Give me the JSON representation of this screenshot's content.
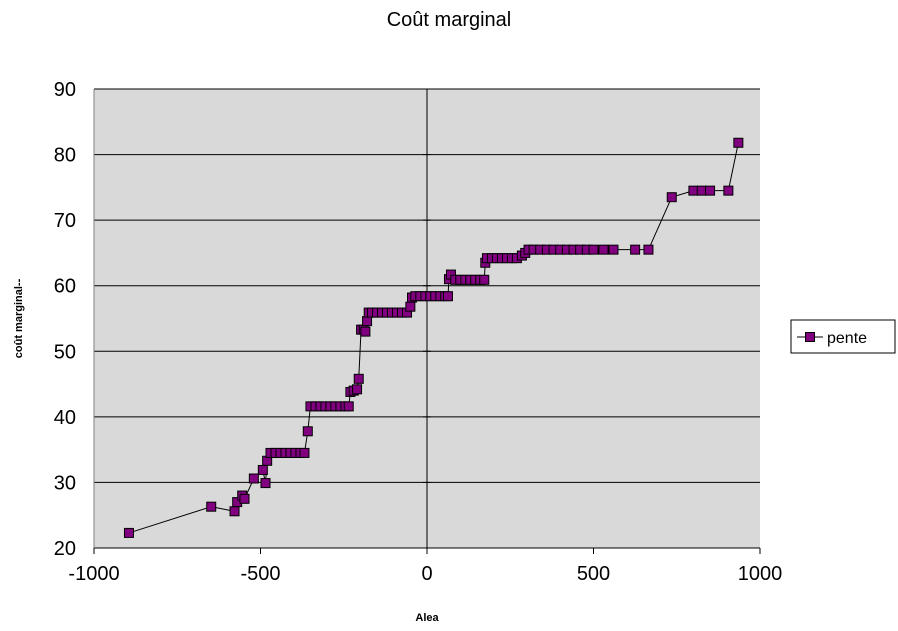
{
  "chart_data": {
    "type": "scatter",
    "title": "Coût marginal",
    "xlabel": "Alea",
    "ylabel": "coût marginal--",
    "xlim": [
      -1000,
      1000
    ],
    "ylim": [
      20,
      90
    ],
    "xticks": [
      -1000,
      -500,
      0,
      500,
      1000
    ],
    "yticks": [
      20,
      30,
      40,
      50,
      60,
      70,
      80,
      90
    ],
    "xtick_labels": [
      "-1000",
      "-500",
      "0",
      "500",
      "1000"
    ],
    "ytick_labels": [
      "20",
      "30",
      "40",
      "50",
      "60",
      "70",
      "80",
      "90"
    ],
    "grid": true,
    "legend": "right",
    "plot_background": "#d9d9d9",
    "series": [
      {
        "name": "pente",
        "marker": "square",
        "color": "#800080",
        "line_color": "#000000",
        "points": [
          [
            -895,
            22.3
          ],
          [
            -648,
            26.3
          ],
          [
            -578,
            25.6
          ],
          [
            -570,
            27.0
          ],
          [
            -555,
            28.0
          ],
          [
            -548,
            27.5
          ],
          [
            -520,
            30.6
          ],
          [
            -493,
            31.9
          ],
          [
            -485,
            29.9
          ],
          [
            -480,
            33.3
          ],
          [
            -470,
            34.5
          ],
          [
            -455,
            34.5
          ],
          [
            -440,
            34.5
          ],
          [
            -425,
            34.5
          ],
          [
            -410,
            34.5
          ],
          [
            -395,
            34.5
          ],
          [
            -380,
            34.5
          ],
          [
            -368,
            34.5
          ],
          [
            -358,
            37.8
          ],
          [
            -350,
            41.6
          ],
          [
            -335,
            41.6
          ],
          [
            -320,
            41.6
          ],
          [
            -305,
            41.6
          ],
          [
            -290,
            41.6
          ],
          [
            -275,
            41.6
          ],
          [
            -260,
            41.6
          ],
          [
            -245,
            41.6
          ],
          [
            -235,
            41.6
          ],
          [
            -230,
            43.8
          ],
          [
            -220,
            44.0
          ],
          [
            -210,
            44.2
          ],
          [
            -205,
            45.8
          ],
          [
            -198,
            53.3
          ],
          [
            -190,
            53.3
          ],
          [
            -185,
            53.0
          ],
          [
            -180,
            54.6
          ],
          [
            -175,
            55.9
          ],
          [
            -165,
            55.9
          ],
          [
            -150,
            55.9
          ],
          [
            -135,
            55.9
          ],
          [
            -120,
            55.9
          ],
          [
            -105,
            55.9
          ],
          [
            -90,
            55.9
          ],
          [
            -75,
            55.9
          ],
          [
            -60,
            55.9
          ],
          [
            -50,
            56.8
          ],
          [
            -45,
            58.2
          ],
          [
            -35,
            58.4
          ],
          [
            -20,
            58.4
          ],
          [
            -5,
            58.4
          ],
          [
            10,
            58.4
          ],
          [
            25,
            58.4
          ],
          [
            40,
            58.4
          ],
          [
            55,
            58.4
          ],
          [
            63,
            58.4
          ],
          [
            66,
            61.0
          ],
          [
            72,
            61.7
          ],
          [
            85,
            60.9
          ],
          [
            100,
            60.9
          ],
          [
            115,
            60.9
          ],
          [
            130,
            60.9
          ],
          [
            145,
            60.9
          ],
          [
            160,
            60.9
          ],
          [
            172,
            60.9
          ],
          [
            175,
            63.5
          ],
          [
            180,
            64.2
          ],
          [
            195,
            64.2
          ],
          [
            210,
            64.2
          ],
          [
            225,
            64.2
          ],
          [
            240,
            64.2
          ],
          [
            255,
            64.2
          ],
          [
            270,
            64.2
          ],
          [
            285,
            64.6
          ],
          [
            295,
            65.0
          ],
          [
            305,
            65.5
          ],
          [
            320,
            65.5
          ],
          [
            340,
            65.5
          ],
          [
            360,
            65.5
          ],
          [
            380,
            65.5
          ],
          [
            400,
            65.5
          ],
          [
            420,
            65.5
          ],
          [
            440,
            65.5
          ],
          [
            460,
            65.5
          ],
          [
            480,
            65.5
          ],
          [
            500,
            65.5
          ],
          [
            530,
            65.5
          ],
          [
            560,
            65.5
          ],
          [
            625,
            65.5
          ],
          [
            665,
            65.5
          ],
          [
            735,
            73.5
          ],
          [
            800,
            74.5
          ],
          [
            825,
            74.5
          ],
          [
            850,
            74.5
          ],
          [
            905,
            74.5
          ],
          [
            935,
            81.8
          ]
        ]
      }
    ]
  }
}
